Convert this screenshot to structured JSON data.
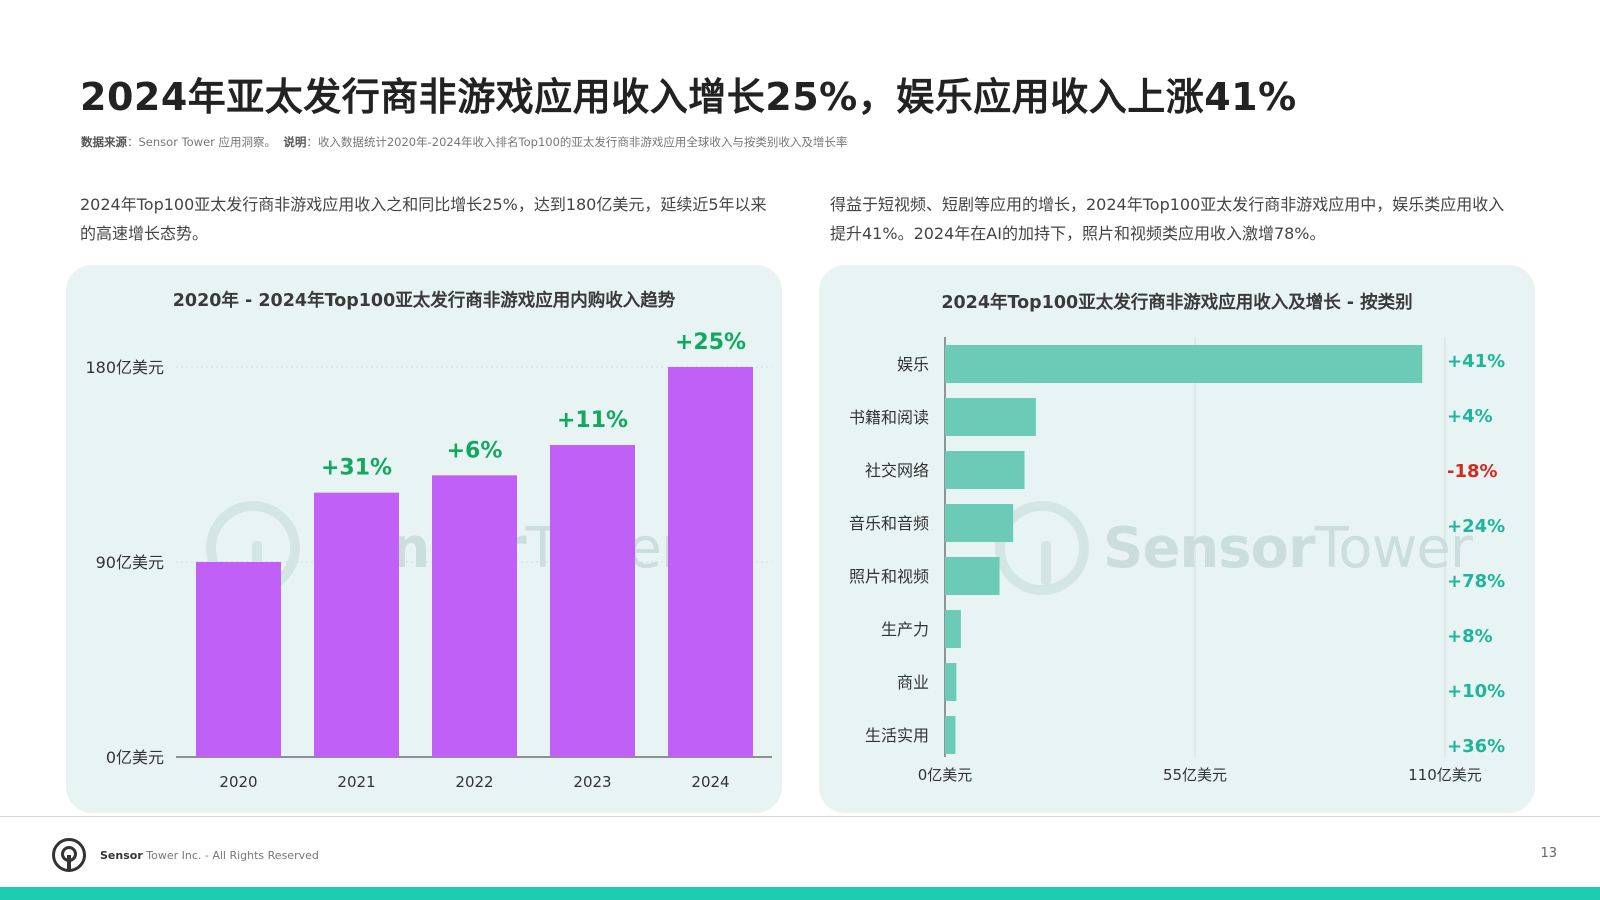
{
  "title": "2024年亚太发行商非游戏应用收入增长25%，娱乐应用收入上涨41%",
  "source": {
    "label": "数据来源",
    "text": "Sensor Tower 应用洞察。",
    "note_label": "说明",
    "note_text": "收入数据统计2020年-2024年收入排名Top100的亚太发行商非游戏应用全球收入与按类别收入及增长率"
  },
  "desc_left": "2024年Top100亚太发行商非游戏应用收入之和同比增长25%，达到180亿美元，延续近5年以来的高速增长态势。",
  "desc_right": "得益于短视频、短剧等应用的增长，2024年Top100亚太发行商非游戏应用中，娱乐类应用收入提升41%。2024年在AI的加持下，照片和视频类应用收入激增78%。",
  "watermark": {
    "brand_a": "Sensor",
    "brand_b": "Tower"
  },
  "colors": {
    "bar_purple": "#c060f6",
    "bar_teal": "#6ccbb6",
    "growth_green": "#12a85f",
    "growth_teal": "#1eb59a",
    "negative_red": "#d3291e"
  },
  "chart_data": [
    {
      "type": "bar",
      "title": "2020年 - 2024年Top100亚太发行商非游戏应用内购收入趋势",
      "categories": [
        "2020",
        "2021",
        "2022",
        "2023",
        "2024"
      ],
      "values": [
        90,
        122,
        130,
        144,
        180
      ],
      "growth_labels": [
        "",
        "+31%",
        "+6%",
        "+11%",
        "+25%"
      ],
      "ylim": [
        0,
        180
      ],
      "yticks": [
        0,
        90,
        180
      ],
      "ytick_labels": [
        "0亿美元",
        "90亿美元",
        "180亿美元"
      ],
      "grid": true
    },
    {
      "type": "bar",
      "orientation": "horizontal",
      "title": "2024年Top100亚太发行商非游戏应用收入及增长 - 按类别",
      "categories": [
        "娱乐",
        "书籍和阅读",
        "社交网络",
        "音乐和音频",
        "照片和视频",
        "生产力",
        "商业",
        "生活实用"
      ],
      "values": [
        105,
        20,
        17.5,
        15,
        12,
        3.5,
        2.5,
        2.3
      ],
      "growth_labels": [
        "+41%",
        "+4%",
        "-18%",
        "+24%",
        "+78%",
        "+8%",
        "+10%",
        "+36%"
      ],
      "xlim": [
        0,
        110
      ],
      "xticks": [
        0,
        55,
        110
      ],
      "xtick_labels": [
        "0亿美元",
        "55亿美元",
        "110亿美元"
      ],
      "grid": true
    }
  ],
  "footer": {
    "brand": "Sensor",
    "text": " Tower Inc. - All Rights Reserved",
    "page": "13"
  }
}
